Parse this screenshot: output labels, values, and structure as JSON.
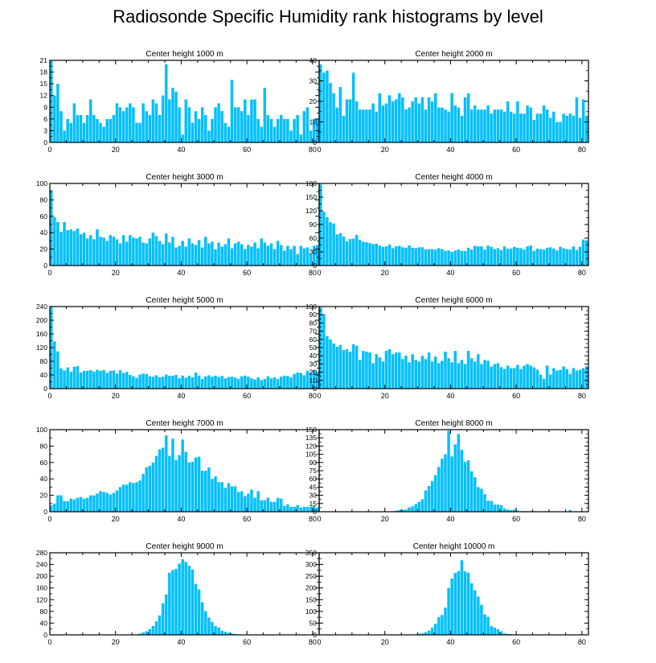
{
  "title": "Radiosonde Specific Humidity rank histograms by level",
  "bar_color": "#00bfff",
  "chart_data": [
    {
      "type": "bar",
      "title": "Center height 1000 m",
      "x_ticks": [
        0,
        20,
        40,
        60,
        80
      ],
      "y_ticks": [
        0,
        3,
        6,
        9,
        12,
        15,
        18,
        21
      ],
      "ylim": [
        0,
        21
      ],
      "xlim": [
        0,
        82
      ],
      "values": [
        21,
        12,
        15,
        8,
        3,
        6,
        5,
        10,
        7,
        7,
        5,
        7,
        11,
        7,
        6,
        5,
        4,
        6,
        6,
        7,
        10,
        9,
        8,
        9,
        10,
        9,
        5,
        5,
        10,
        8,
        7,
        11,
        10,
        7,
        12,
        20,
        11,
        14,
        13,
        9,
        2,
        11,
        9,
        5,
        8,
        6,
        9,
        7,
        3,
        6,
        9,
        10,
        8,
        5,
        4,
        16,
        9,
        9,
        8,
        11,
        7,
        11,
        11,
        6,
        4,
        14,
        7,
        6,
        4,
        6,
        7,
        6,
        6,
        3,
        6,
        7,
        2,
        8,
        9,
        3,
        6,
        6
      ]
    },
    {
      "type": "bar",
      "title": "Center height 2000 m",
      "x_ticks": [
        0,
        20,
        40,
        60,
        80
      ],
      "y_ticks": [
        0,
        10,
        20,
        30,
        40
      ],
      "ylim": [
        0,
        40
      ],
      "xlim": [
        0,
        82
      ],
      "values": [
        38,
        34,
        35,
        29,
        24,
        17,
        27,
        13,
        21,
        21,
        34,
        20,
        16,
        16,
        16,
        16,
        19,
        15,
        24,
        18,
        19,
        23,
        20,
        21,
        24,
        22,
        16,
        17,
        20,
        22,
        19,
        22,
        16,
        22,
        20,
        24,
        17,
        17,
        16,
        15,
        24,
        18,
        17,
        13,
        22,
        24,
        16,
        18,
        16,
        16,
        16,
        18,
        14,
        16,
        16,
        16,
        15,
        20,
        15,
        14,
        20,
        14,
        14,
        18,
        17,
        11,
        14,
        14,
        18,
        16,
        12,
        15,
        10,
        10,
        14,
        13,
        14,
        13,
        22,
        12,
        21,
        13,
        18
      ]
    },
    {
      "type": "bar",
      "title": "Center height 3000 m",
      "x_ticks": [
        0,
        20,
        40,
        60,
        80
      ],
      "y_ticks": [
        0,
        20,
        40,
        60,
        80,
        100
      ],
      "ylim": [
        0,
        100
      ],
      "xlim": [
        0,
        82
      ],
      "values": [
        92,
        59,
        53,
        41,
        53,
        43,
        44,
        42,
        45,
        38,
        40,
        33,
        37,
        32,
        44,
        35,
        34,
        30,
        37,
        35,
        32,
        27,
        37,
        29,
        37,
        34,
        33,
        35,
        28,
        27,
        33,
        40,
        36,
        30,
        26,
        39,
        28,
        35,
        22,
        24,
        30,
        23,
        33,
        27,
        25,
        31,
        22,
        35,
        27,
        29,
        20,
        28,
        23,
        26,
        33,
        21,
        27,
        29,
        26,
        20,
        25,
        23,
        28,
        21,
        33,
        28,
        24,
        27,
        20,
        30,
        25,
        18,
        24,
        20,
        24,
        14,
        24,
        21,
        22,
        14,
        24,
        25,
        27
      ]
    },
    {
      "type": "bar",
      "title": "Center height 4000 m",
      "x_ticks": [
        0,
        20,
        40,
        60,
        80
      ],
      "y_ticks": [
        0,
        30,
        60,
        90,
        120,
        150,
        180
      ],
      "ylim": [
        0,
        180
      ],
      "xlim": [
        0,
        82
      ],
      "values": [
        178,
        118,
        106,
        95,
        92,
        68,
        71,
        64,
        53,
        58,
        59,
        67,
        56,
        52,
        51,
        49,
        47,
        48,
        44,
        41,
        42,
        46,
        38,
        42,
        43,
        40,
        39,
        44,
        39,
        38,
        40,
        40,
        35,
        36,
        36,
        35,
        38,
        36,
        32,
        33,
        30,
        33,
        35,
        32,
        32,
        39,
        35,
        43,
        42,
        42,
        35,
        44,
        41,
        36,
        38,
        34,
        42,
        37,
        37,
        41,
        39,
        38,
        35,
        42,
        44,
        32,
        37,
        36,
        35,
        39,
        40,
        37,
        33,
        41,
        38,
        36,
        35,
        42,
        34,
        41,
        57,
        55,
        64,
        61
      ]
    },
    {
      "type": "bar",
      "title": "Center height 5000 m",
      "x_ticks": [
        0,
        20,
        40,
        60,
        80
      ],
      "y_ticks": [
        0,
        40,
        80,
        120,
        160,
        200,
        240
      ],
      "ylim": [
        0,
        240
      ],
      "xlim": [
        0,
        82
      ],
      "values": [
        240,
        138,
        109,
        59,
        53,
        62,
        49,
        64,
        66,
        47,
        52,
        52,
        54,
        50,
        55,
        52,
        54,
        46,
        52,
        53,
        44,
        54,
        46,
        49,
        40,
        36,
        31,
        41,
        44,
        43,
        36,
        35,
        39,
        33,
        35,
        41,
        37,
        38,
        40,
        30,
        38,
        32,
        38,
        33,
        47,
        38,
        28,
        36,
        39,
        35,
        38,
        34,
        37,
        30,
        34,
        35,
        33,
        28,
        36,
        38,
        35,
        30,
        27,
        33,
        25,
        28,
        36,
        30,
        33,
        28,
        35,
        38,
        37,
        33,
        43,
        47,
        46,
        39,
        52,
        47,
        54,
        49
      ]
    },
    {
      "type": "bar",
      "title": "Center height 6000 m",
      "x_ticks": [
        0,
        20,
        40,
        60,
        80
      ],
      "y_ticks": [
        0,
        10,
        20,
        30,
        40,
        50,
        60,
        70,
        80,
        90,
        100
      ],
      "ylim": [
        0,
        100
      ],
      "xlim": [
        0,
        82
      ],
      "values": [
        99,
        91,
        64,
        60,
        55,
        51,
        53,
        47,
        48,
        45,
        54,
        52,
        35,
        46,
        45,
        44,
        31,
        42,
        38,
        33,
        46,
        48,
        42,
        44,
        44,
        36,
        40,
        32,
        42,
        35,
        33,
        40,
        36,
        44,
        33,
        39,
        31,
        34,
        45,
        37,
        32,
        46,
        31,
        35,
        30,
        46,
        37,
        33,
        42,
        30,
        35,
        34,
        27,
        30,
        31,
        26,
        24,
        28,
        25,
        25,
        29,
        24,
        28,
        30,
        28,
        26,
        23,
        17,
        12,
        28,
        17,
        25,
        22,
        23,
        27,
        24,
        18,
        25,
        22,
        23,
        25,
        27,
        22
      ]
    },
    {
      "type": "bar",
      "title": "Center height 7000 m",
      "x_ticks": [
        0,
        20,
        40,
        60,
        80
      ],
      "y_ticks": [
        0,
        20,
        40,
        60,
        80,
        100
      ],
      "ylim": [
        0,
        100
      ],
      "xlim": [
        0,
        82
      ],
      "values": [
        8,
        10,
        20,
        20,
        13,
        13,
        16,
        15,
        17,
        18,
        16,
        17,
        20,
        20,
        22,
        25,
        24,
        23,
        21,
        23,
        26,
        30,
        33,
        33,
        36,
        35,
        36,
        38,
        46,
        54,
        56,
        60,
        68,
        76,
        78,
        93,
        68,
        89,
        63,
        69,
        88,
        73,
        60,
        61,
        66,
        67,
        50,
        50,
        54,
        40,
        43,
        36,
        36,
        29,
        35,
        31,
        31,
        24,
        25,
        19,
        22,
        27,
        17,
        25,
        14,
        14,
        17,
        12,
        12,
        17,
        16,
        7,
        9,
        6,
        6,
        8,
        5,
        6,
        6,
        6,
        7,
        5,
        7
      ]
    },
    {
      "type": "bar",
      "title": "Center height 8000 m",
      "x_ticks": [
        0,
        20,
        40,
        60,
        80
      ],
      "y_ticks": [
        0,
        15,
        30,
        45,
        60,
        75,
        90,
        105,
        120,
        135,
        150
      ],
      "ylim": [
        0,
        150
      ],
      "xlim": [
        0,
        82
      ],
      "values": [
        0,
        0,
        0,
        0,
        0,
        0,
        0,
        0,
        0,
        0,
        0,
        0,
        0,
        0,
        0,
        0,
        0,
        0,
        0,
        0,
        0,
        0,
        1,
        2,
        3,
        4,
        4,
        8,
        10,
        14,
        18,
        23,
        39,
        47,
        56,
        67,
        82,
        97,
        105,
        148,
        101,
        123,
        142,
        113,
        91,
        94,
        74,
        63,
        45,
        42,
        32,
        20,
        20,
        13,
        13,
        12,
        6,
        4,
        3,
        4,
        2,
        1,
        1,
        1,
        1,
        1,
        0,
        0,
        1,
        0,
        0,
        0,
        0,
        0,
        0,
        0,
        3,
        0,
        0,
        0,
        0,
        0
      ]
    },
    {
      "type": "bar",
      "title": "Center height 9000 m",
      "x_ticks": [
        0,
        20,
        40,
        60,
        80
      ],
      "y_ticks": [
        0,
        40,
        80,
        120,
        160,
        200,
        240,
        280
      ],
      "ylim": [
        0,
        280
      ],
      "xlim": [
        0,
        82
      ],
      "values": [
        0,
        0,
        0,
        0,
        0,
        0,
        0,
        0,
        0,
        0,
        0,
        0,
        0,
        0,
        0,
        0,
        0,
        0,
        0,
        0,
        0,
        0,
        0,
        0,
        0,
        1,
        2,
        4,
        8,
        12,
        20,
        30,
        46,
        66,
        108,
        138,
        212,
        221,
        225,
        243,
        258,
        249,
        236,
        223,
        174,
        155,
        111,
        81,
        59,
        44,
        30,
        25,
        14,
        11,
        7,
        4,
        3,
        1,
        1,
        1,
        0,
        0,
        1,
        0,
        0,
        0,
        0,
        0,
        0,
        0,
        0,
        0,
        0,
        0,
        0,
        0,
        0,
        0,
        0,
        0,
        0,
        0
      ]
    },
    {
      "type": "bar",
      "title": "Center height 10000 m",
      "x_ticks": [
        0,
        20,
        40,
        60,
        80
      ],
      "y_ticks": [
        0,
        50,
        100,
        150,
        200,
        250,
        300,
        350
      ],
      "ylim": [
        0,
        350
      ],
      "xlim": [
        0,
        82
      ],
      "values": [
        0,
        0,
        0,
        0,
        0,
        0,
        0,
        0,
        0,
        0,
        0,
        0,
        0,
        0,
        0,
        0,
        0,
        0,
        0,
        0,
        0,
        0,
        0,
        0,
        0,
        0,
        0,
        0,
        1,
        2,
        4,
        6,
        11,
        18,
        30,
        47,
        75,
        85,
        116,
        200,
        240,
        264,
        272,
        318,
        270,
        265,
        220,
        190,
        163,
        128,
        87,
        77,
        37,
        31,
        24,
        15,
        6,
        4,
        3,
        2,
        1,
        1,
        1,
        0,
        0,
        0,
        0,
        0,
        0,
        0,
        0,
        0,
        0,
        0,
        0,
        0,
        0,
        0,
        0,
        0,
        0,
        0
      ]
    }
  ]
}
